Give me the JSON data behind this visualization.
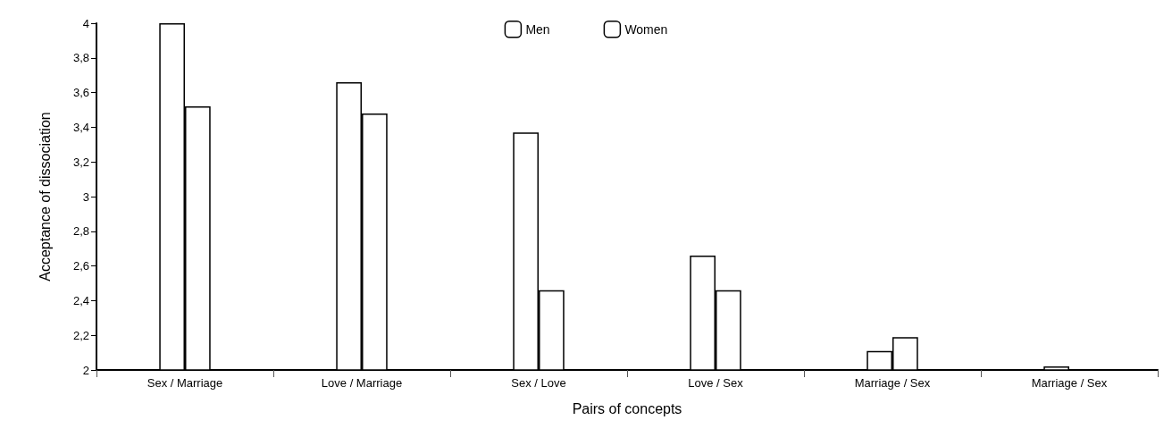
{
  "chart_data": {
    "type": "bar",
    "xlabel": "Pairs of concepts",
    "ylabel": "Acceptance of dissociation",
    "categories": [
      "Sex / Marriage",
      "Love / Marriage",
      "Sex / Love",
      "Love / Sex",
      "Marriage / Sex",
      "Marriage / Sex"
    ],
    "series": [
      {
        "name": "Men",
        "color": "#ffffff",
        "values": [
          4.0,
          3.66,
          3.37,
          2.66,
          2.11,
          2.02
        ]
      },
      {
        "name": "Women",
        "color": "#ffffff",
        "values": [
          3.52,
          3.48,
          2.46,
          2.46,
          2.19,
          2.0
        ]
      }
    ],
    "ylim": [
      2,
      4
    ],
    "yticks": [
      2,
      {
        "value": 2.2,
        "label": "2,2"
      },
      {
        "value": 2.4,
        "label": "2,4"
      },
      {
        "value": 2.6,
        "label": "2,6"
      },
      {
        "value": 2.8,
        "label": "2,8"
      },
      3,
      {
        "value": 3.2,
        "label": "3,2"
      },
      {
        "value": 3.4,
        "label": "3,4"
      },
      {
        "value": 3.6,
        "label": "3,6"
      },
      {
        "value": 3.8,
        "label": "3,8"
      },
      4
    ],
    "grid": false,
    "legend": "top"
  }
}
